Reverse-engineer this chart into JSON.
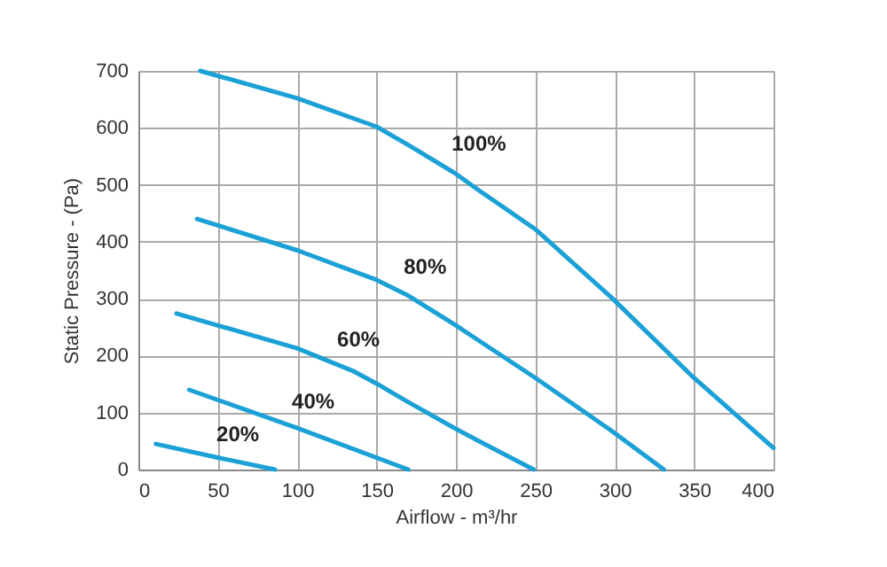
{
  "chart_data": {
    "type": "line",
    "xlabel": "Airflow - m³/hr",
    "ylabel": "Static Pressure -  (Pa)",
    "xlim": [
      0,
      400
    ],
    "xticks": [
      0,
      50,
      100,
      150,
      200,
      250,
      300,
      350,
      400
    ],
    "ylim": [
      0,
      700
    ],
    "yticks": [
      0,
      100,
      200,
      300,
      400,
      500,
      600,
      700
    ],
    "grid": true,
    "line_style": "solid",
    "marker": "none",
    "series": [
      {
        "name": "100%",
        "color": "#1ba1d6",
        "x": [
          39,
          100,
          150,
          170,
          199,
          213,
          250,
          298,
          348,
          400
        ],
        "values": [
          700,
          652,
          602,
          570,
          521,
          493,
          422,
          302,
          166,
          38
        ]
      },
      {
        "name": "80%",
        "color": "#1ba1d6",
        "x": [
          37,
          100,
          150,
          169,
          199,
          213,
          250,
          298,
          331
        ],
        "values": [
          440,
          385,
          333,
          307,
          255,
          229,
          161,
          68,
          0
        ]
      },
      {
        "name": "60%",
        "color": "#1ba1d6",
        "x": [
          24,
          100,
          136,
          150,
          169,
          199,
          213,
          249
        ],
        "values": [
          274,
          213,
          172,
          151,
          120,
          73,
          52,
          0
        ]
      },
      {
        "name": "40%",
        "color": "#1ba1d6",
        "x": [
          32,
          100,
          170
        ],
        "values": [
          140,
          73,
          0
        ]
      },
      {
        "name": "20%",
        "color": "#1ba1d6",
        "x": [
          11,
          50,
          86
        ],
        "values": [
          45,
          21,
          0
        ]
      }
    ]
  }
}
